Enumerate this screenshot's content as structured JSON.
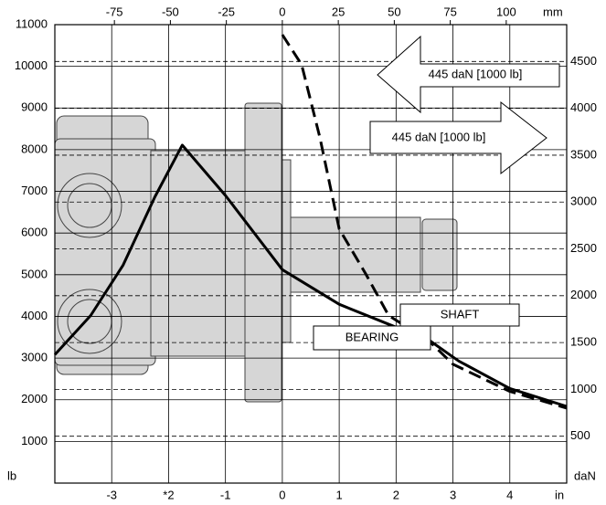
{
  "chart_data": {
    "type": "line",
    "x_unit": "in",
    "x2_unit": "mm",
    "y_unit": "lb",
    "y2_unit": "daN",
    "xlim": [
      -4,
      5
    ],
    "xticks": [
      -3,
      {
        "value": -2,
        "label": "*2"
      },
      -1,
      0,
      1,
      2,
      3,
      4
    ],
    "x2lim": [
      -101.6,
      127
    ],
    "x2ticks": [
      -75,
      -50,
      -25,
      0,
      25,
      50,
      75,
      100
    ],
    "ylim": [
      0,
      11000
    ],
    "yticks": [
      1000,
      2000,
      3000,
      4000,
      5000,
      6000,
      7000,
      8000,
      9000,
      10000,
      11000
    ],
    "y2lim": [
      0,
      4893
    ],
    "y2ticks": [
      500,
      1000,
      1500,
      2000,
      2500,
      3000,
      3500,
      4000,
      4500
    ],
    "grid": true,
    "series": [
      {
        "name": "BEARING",
        "color": "#000000",
        "line_style": "solid",
        "x": [
          -4,
          -3.37,
          -2.8,
          -2.24,
          -1.76,
          -1,
          0,
          1,
          2,
          2.6,
          3.1,
          4,
          5
        ],
        "values": [
          3080,
          4020,
          5230,
          6870,
          8110,
          6900,
          5120,
          4290,
          3740,
          3410,
          2930,
          2270,
          1840
        ]
      },
      {
        "name": "SHAFT",
        "color": "#000000",
        "line_style": "dashed",
        "x": [
          0,
          0.34,
          0.66,
          1,
          1.47,
          1.87,
          2.3,
          2.6,
          3,
          4,
          5
        ],
        "values": [
          10760,
          10040,
          8290,
          6100,
          5010,
          4020,
          3650,
          3380,
          2850,
          2200,
          1800
        ]
      }
    ],
    "annotations": [
      "445 daN [1000 lb]",
      "445 daN [1000 lb]"
    ]
  }
}
